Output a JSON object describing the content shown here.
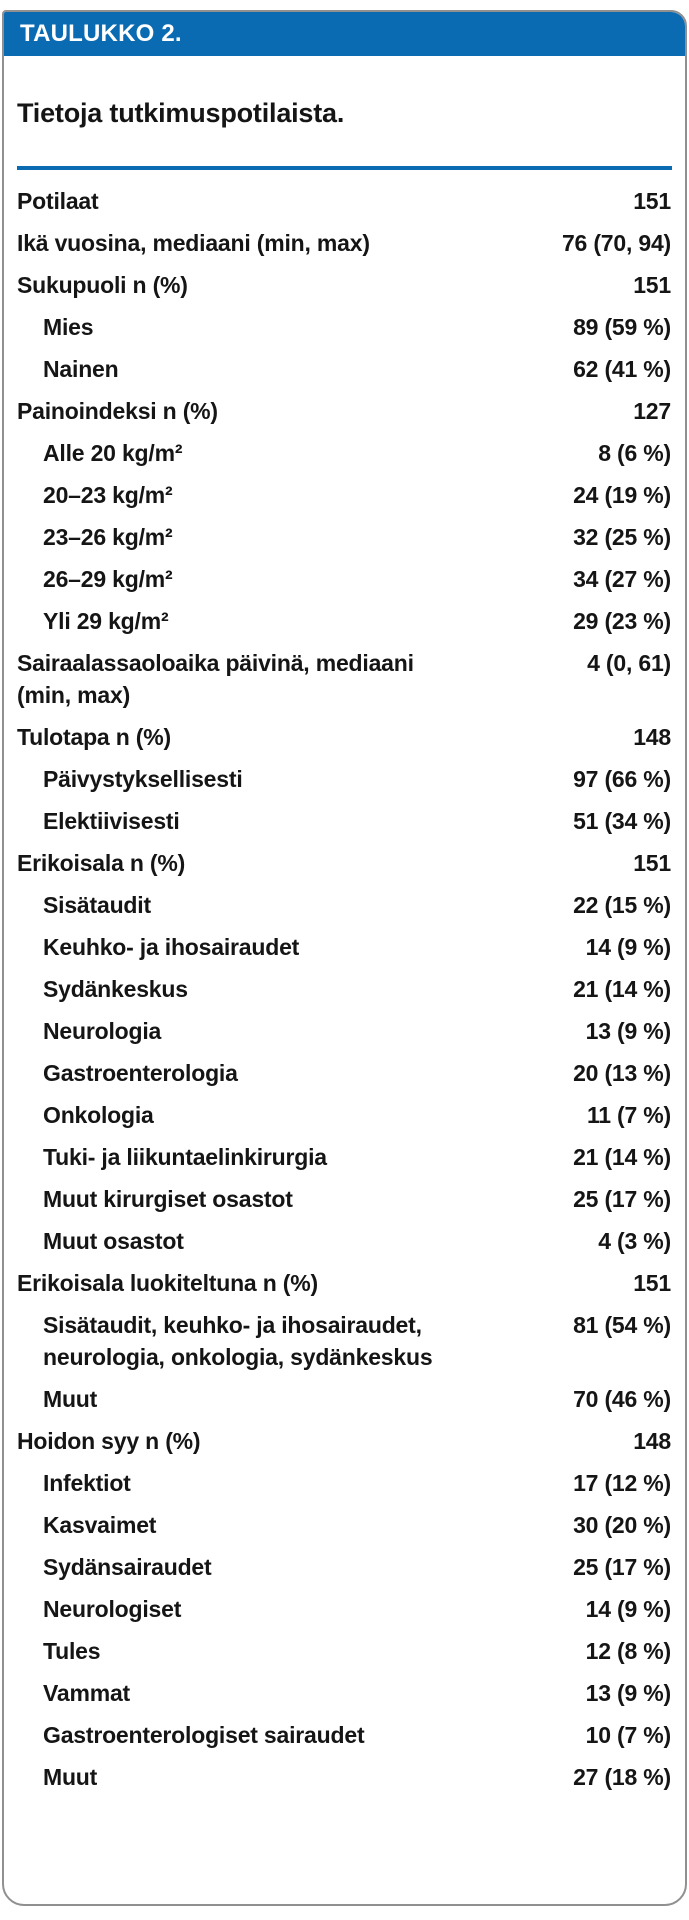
{
  "colors": {
    "accent_blue": "#0b6bb2",
    "text": "#151515",
    "card_border": "#909090"
  },
  "header": {
    "tag": "TAULUKKO 2."
  },
  "title": "Tietoja tutkimuspotilaista.",
  "table": {
    "rows": [
      {
        "label": "Potilaat",
        "value": "151",
        "indent": 0
      },
      {
        "label": "Ikä vuosina, mediaani (min, max)",
        "value": "76 (70, 94)",
        "indent": 0
      },
      {
        "label": "Sukupuoli n (%)",
        "value": "151",
        "indent": 0
      },
      {
        "label": "Mies",
        "value": "89 (59 %)",
        "indent": 1
      },
      {
        "label": "Nainen",
        "value": "62 (41 %)",
        "indent": 1
      },
      {
        "label": "Painoindeksi n (%)",
        "value": "127",
        "indent": 0
      },
      {
        "label": "Alle 20 kg/m²",
        "value": "8 (6 %)",
        "indent": 1
      },
      {
        "label": "20–23 kg/m²",
        "value": "24 (19 %)",
        "indent": 1
      },
      {
        "label": "23–26 kg/m²",
        "value": "32 (25 %)",
        "indent": 1
      },
      {
        "label": "26–29 kg/m²",
        "value": "34 (27 %)",
        "indent": 1
      },
      {
        "label": "Yli 29 kg/m²",
        "value": "29 (23 %)",
        "indent": 1
      },
      {
        "label": "Sairaalassaoloaika päivinä, mediaani\n(min, max)",
        "value": "4 (0, 61)",
        "indent": 0
      },
      {
        "label": "Tulotapa n (%)",
        "value": "148",
        "indent": 0
      },
      {
        "label": "Päivystyksellisesti",
        "value": "97 (66 %)",
        "indent": 1
      },
      {
        "label": "Elektiivisesti",
        "value": "51 (34 %)",
        "indent": 1
      },
      {
        "label": "Erikoisala n (%)",
        "value": "151",
        "indent": 0
      },
      {
        "label": "Sisätaudit",
        "value": "22 (15 %)",
        "indent": 1
      },
      {
        "label": "Keuhko- ja ihosairaudet",
        "value": "14 (9 %)",
        "indent": 1
      },
      {
        "label": "Sydänkeskus",
        "value": "21 (14 %)",
        "indent": 1
      },
      {
        "label": "Neurologia",
        "value": "13 (9 %)",
        "indent": 1
      },
      {
        "label": "Gastroenterologia",
        "value": "20 (13 %)",
        "indent": 1
      },
      {
        "label": "Onkologia",
        "value": "11 (7 %)",
        "indent": 1
      },
      {
        "label": "Tuki- ja liikuntaelinkirurgia",
        "value": "21 (14 %)",
        "indent": 1
      },
      {
        "label": "Muut kirurgiset osastot",
        "value": "25 (17 %)",
        "indent": 1
      },
      {
        "label": "Muut osastot",
        "value": "4 (3 %)",
        "indent": 1
      },
      {
        "label": "Erikoisala luokiteltuna n (%)",
        "value": "151",
        "indent": 0
      },
      {
        "label": "Sisätaudit, keuhko- ja ihosairaudet,\nneurologia, onkologia, sydänkeskus",
        "value": "81 (54 %)",
        "indent": 1
      },
      {
        "label": "Muut",
        "value": "70 (46 %)",
        "indent": 1
      },
      {
        "label": "Hoidon syy n (%)",
        "value": "148",
        "indent": 0
      },
      {
        "label": "Infektiot",
        "value": "17 (12 %)",
        "indent": 1
      },
      {
        "label": "Kasvaimet",
        "value": "30 (20 %)",
        "indent": 1
      },
      {
        "label": "Sydänsairaudet",
        "value": "25 (17 %)",
        "indent": 1
      },
      {
        "label": "Neurologiset",
        "value": "14 (9 %)",
        "indent": 1
      },
      {
        "label": "Tules",
        "value": "12 (8 %)",
        "indent": 1
      },
      {
        "label": "Vammat",
        "value": "13 (9 %)",
        "indent": 1
      },
      {
        "label": "Gastroenterologiset sairaudet",
        "value": "10 (7 %)",
        "indent": 1
      },
      {
        "label": "Muut",
        "value": "27 (18 %)",
        "indent": 1
      }
    ]
  }
}
